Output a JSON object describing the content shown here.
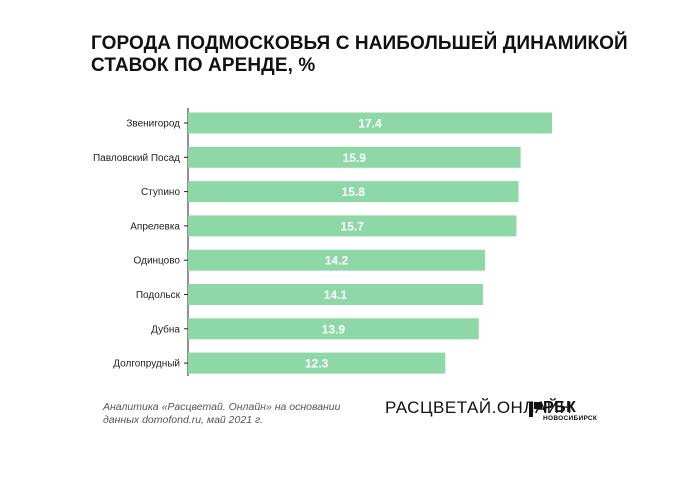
{
  "title_lines": [
    "ГОРОДА ПОДМОСКОВЬЯ С НАИБОЛЬШЕЙ ДИНАМИКОЙ",
    "СТАВОК ПО АРЕНДЕ, %"
  ],
  "source_lines": [
    "Аналитика «Расцветай. Онлайн» на основании",
    "данных domofond.ru, май 2021 г."
  ],
  "brand": {
    "part1": "РАСЦВЕТАЙ.",
    "part2": "ОНЛАЙН"
  },
  "rbk": {
    "name": "РБК",
    "sub": "НОВОСИБИРСК"
  },
  "colors": {
    "bar": "#8ed8a8",
    "bar_label": "#ffffff",
    "axis": "#222222",
    "text": "#222222"
  },
  "chart_data": {
    "type": "bar",
    "orientation": "horizontal",
    "title": "ГОРОДА ПОДМОСКОВЬЯ С НАИБОЛЬШЕЙ ДИНАМИКОЙ СТАВОК ПО АРЕНДЕ, %",
    "categories": [
      "Звенигород",
      "Павловский Посад",
      "Ступино",
      "Апрелевка",
      "Одинцово",
      "Подольск",
      "Дубна",
      "Долгопрудный"
    ],
    "values": [
      17.4,
      15.9,
      15.8,
      15.7,
      14.2,
      14.1,
      13.9,
      12.3
    ],
    "data_labels": [
      "17.4",
      "15.9",
      "15.8",
      "15.7",
      "14.2",
      "14.1",
      "13.9",
      "12.3"
    ],
    "xlim": [
      0,
      17.4
    ],
    "grid": false,
    "legend": "none"
  }
}
